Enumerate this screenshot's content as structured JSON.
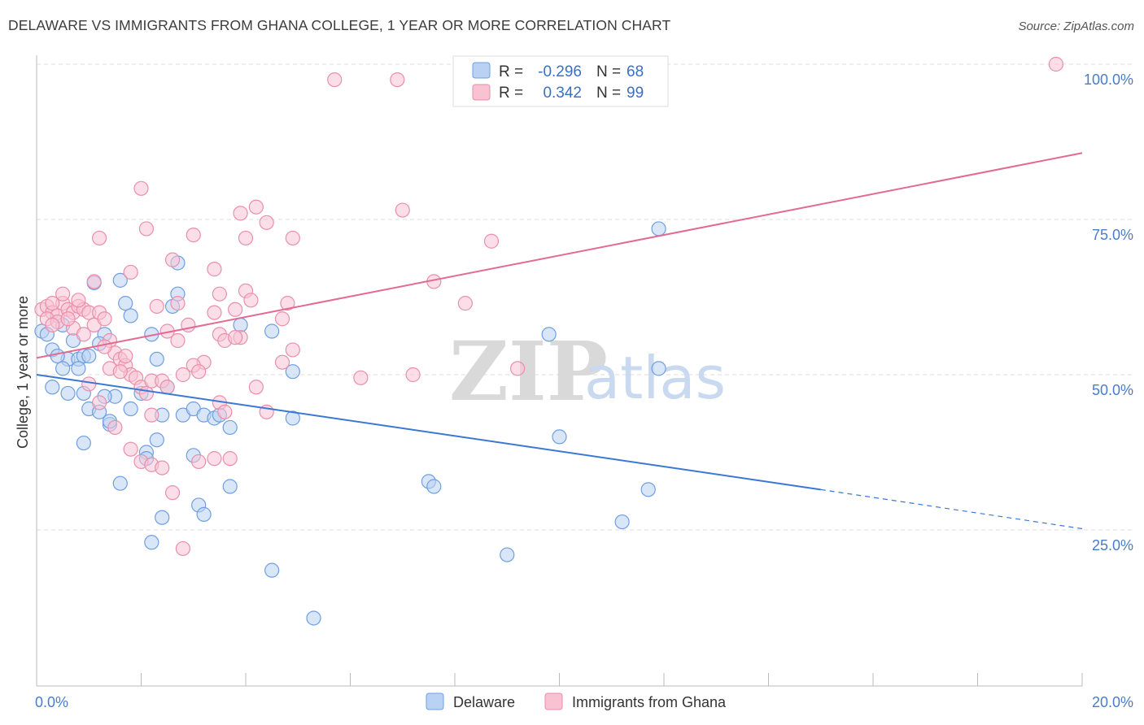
{
  "title": "DELAWARE VS IMMIGRANTS FROM GHANA COLLEGE, 1 YEAR OR MORE CORRELATION CHART",
  "source": "Source: ZipAtlas.com",
  "watermark": {
    "zip": "ZIP",
    "atlas": "atlas"
  },
  "colors": {
    "delaware_fill": "#b9d1f3",
    "delaware_stroke": "#6f9fe0",
    "delaware_line": "#3b78d4",
    "ghana_fill": "#f8c2d3",
    "ghana_stroke": "#ea8fab",
    "ghana_line": "#e36a93",
    "grid": "#dddddd",
    "axis_text": "#4a7cc9"
  },
  "legend": {
    "rows": [
      {
        "r_label": "R =",
        "r_value": "-0.296",
        "n_label": "N =",
        "n_value": "68"
      },
      {
        "r_label": "R =",
        "r_value": "0.342",
        "n_label": "N =",
        "n_value": "99"
      }
    ]
  },
  "bottom_legend": [
    "Delaware",
    "Immigrants from Ghana"
  ],
  "chart_data": {
    "type": "scatter",
    "title": "DELAWARE VS IMMIGRANTS FROM GHANA COLLEGE, 1 YEAR OR MORE CORRELATION CHART",
    "xlabel": "",
    "ylabel": "College, 1 year or more",
    "xlim": [
      0,
      20
    ],
    "ylim": [
      0,
      105
    ],
    "x_tick_labels": [
      "0.0%",
      "20.0%"
    ],
    "y_ticks": [
      25,
      50,
      75,
      100
    ],
    "y_tick_labels": [
      "25.0%",
      "50.0%",
      "75.0%",
      "100.0%"
    ],
    "grid": true,
    "legend_position": "top-center",
    "series": [
      {
        "name": "Delaware",
        "r": -0.296,
        "n": 68,
        "trend": {
          "x0": 0,
          "y0": 50.0,
          "x1": 15.0,
          "y1": 31.5,
          "dashed_to_x": 20.0,
          "dashed_to_y": 25.2
        },
        "points": [
          [
            0.1,
            57.0
          ],
          [
            0.2,
            56.5
          ],
          [
            0.3,
            54.0
          ],
          [
            0.5,
            58.0
          ],
          [
            0.6,
            52.5
          ],
          [
            0.4,
            53.0
          ],
          [
            0.5,
            51.0
          ],
          [
            0.7,
            55.5
          ],
          [
            0.8,
            52.5
          ],
          [
            0.9,
            53.0
          ],
          [
            1.0,
            53.0
          ],
          [
            0.3,
            48.0
          ],
          [
            0.8,
            51.0
          ],
          [
            0.9,
            47.0
          ],
          [
            1.0,
            44.5
          ],
          [
            1.2,
            44.0
          ],
          [
            1.3,
            56.5
          ],
          [
            1.2,
            55.0
          ],
          [
            1.1,
            64.8
          ],
          [
            1.6,
            65.2
          ],
          [
            1.7,
            61.5
          ],
          [
            1.8,
            59.5
          ],
          [
            2.2,
            56.5
          ],
          [
            2.3,
            52.5
          ],
          [
            2.5,
            48.0
          ],
          [
            2.6,
            61.0
          ],
          [
            2.7,
            63.0
          ],
          [
            2.7,
            68.0
          ],
          [
            1.5,
            46.5
          ],
          [
            1.4,
            42.0
          ],
          [
            1.4,
            42.5
          ],
          [
            1.8,
            44.5
          ],
          [
            2.3,
            39.5
          ],
          [
            2.4,
            43.5
          ],
          [
            2.8,
            43.5
          ],
          [
            3.0,
            44.5
          ],
          [
            2.1,
            37.5
          ],
          [
            2.1,
            36.5
          ],
          [
            3.0,
            37.0
          ],
          [
            3.2,
            43.5
          ],
          [
            3.4,
            43.0
          ],
          [
            3.5,
            43.5
          ],
          [
            3.7,
            41.5
          ],
          [
            3.9,
            58.0
          ],
          [
            4.5,
            57.0
          ],
          [
            4.9,
            50.5
          ],
          [
            4.9,
            43.0
          ],
          [
            0.9,
            39.0
          ],
          [
            1.6,
            32.5
          ],
          [
            2.4,
            27.0
          ],
          [
            2.2,
            23.0
          ],
          [
            3.1,
            29.0
          ],
          [
            3.2,
            27.5
          ],
          [
            3.7,
            32.0
          ],
          [
            4.5,
            18.5
          ],
          [
            5.3,
            10.8
          ],
          [
            7.5,
            32.8
          ],
          [
            7.6,
            32.0
          ],
          [
            9.0,
            21.0
          ],
          [
            9.8,
            56.5
          ],
          [
            10.0,
            40.0
          ],
          [
            11.2,
            26.3
          ],
          [
            11.7,
            31.5
          ],
          [
            11.9,
            51.0
          ],
          [
            11.9,
            73.5
          ],
          [
            2.0,
            47.0
          ],
          [
            1.3,
            46.5
          ],
          [
            0.6,
            47.0
          ]
        ]
      },
      {
        "name": "Immigrants from Ghana",
        "r": 0.342,
        "n": 99,
        "trend": {
          "x0": 0,
          "y0": 52.7,
          "x1": 20.0,
          "y1": 85.7
        },
        "points": [
          [
            0.1,
            60.5
          ],
          [
            0.2,
            61.0
          ],
          [
            0.3,
            60.0
          ],
          [
            0.4,
            59.5
          ],
          [
            0.5,
            61.5
          ],
          [
            0.6,
            60.5
          ],
          [
            0.7,
            60.0
          ],
          [
            0.8,
            61.0
          ],
          [
            0.9,
            60.5
          ],
          [
            1.0,
            60.0
          ],
          [
            0.2,
            59.0
          ],
          [
            0.3,
            61.5
          ],
          [
            0.4,
            58.5
          ],
          [
            0.5,
            63.0
          ],
          [
            0.7,
            57.5
          ],
          [
            0.8,
            62.0
          ],
          [
            1.1,
            58.0
          ],
          [
            1.2,
            60.0
          ],
          [
            1.3,
            59.0
          ],
          [
            1.4,
            55.5
          ],
          [
            1.5,
            53.5
          ],
          [
            1.6,
            52.5
          ],
          [
            1.7,
            51.5
          ],
          [
            1.8,
            50.0
          ],
          [
            1.9,
            49.5
          ],
          [
            2.0,
            48.0
          ],
          [
            2.1,
            47.0
          ],
          [
            2.2,
            49.0
          ],
          [
            1.0,
            48.5
          ],
          [
            1.2,
            45.5
          ],
          [
            1.5,
            41.5
          ],
          [
            1.8,
            38.0
          ],
          [
            2.0,
            36.0
          ],
          [
            2.2,
            35.5
          ],
          [
            2.4,
            35.0
          ],
          [
            2.6,
            31.0
          ],
          [
            2.8,
            22.0
          ],
          [
            3.1,
            36.0
          ],
          [
            3.4,
            36.5
          ],
          [
            3.5,
            45.5
          ],
          [
            3.7,
            36.5
          ],
          [
            3.2,
            52.0
          ],
          [
            3.4,
            60.0
          ],
          [
            3.5,
            56.5
          ],
          [
            3.6,
            55.5
          ],
          [
            3.8,
            60.5
          ],
          [
            3.9,
            56.0
          ],
          [
            4.0,
            63.5
          ],
          [
            4.1,
            62.0
          ],
          [
            4.2,
            48.0
          ],
          [
            4.4,
            44.0
          ],
          [
            4.7,
            59.0
          ],
          [
            4.8,
            61.5
          ],
          [
            4.9,
            54.0
          ],
          [
            4.7,
            52.0
          ],
          [
            2.0,
            80.0
          ],
          [
            2.1,
            73.5
          ],
          [
            1.2,
            72.0
          ],
          [
            2.6,
            68.5
          ],
          [
            1.8,
            66.5
          ],
          [
            1.1,
            65.0
          ],
          [
            3.0,
            72.5
          ],
          [
            3.4,
            67.0
          ],
          [
            3.9,
            76.0
          ],
          [
            4.0,
            72.0
          ],
          [
            4.2,
            77.0
          ],
          [
            4.4,
            74.5
          ],
          [
            4.9,
            72.0
          ],
          [
            3.5,
            63.0
          ],
          [
            2.7,
            61.5
          ],
          [
            2.3,
            61.0
          ],
          [
            2.9,
            58.0
          ],
          [
            2.7,
            55.5
          ],
          [
            3.0,
            51.5
          ],
          [
            3.1,
            50.5
          ],
          [
            2.4,
            49.0
          ],
          [
            2.5,
            48.0
          ],
          [
            2.2,
            43.5
          ],
          [
            5.7,
            97.5
          ],
          [
            6.9,
            97.5
          ],
          [
            7.0,
            76.5
          ],
          [
            7.6,
            65.0
          ],
          [
            8.2,
            61.5
          ],
          [
            8.7,
            71.5
          ],
          [
            6.2,
            49.5
          ],
          [
            7.2,
            50.0
          ],
          [
            9.2,
            51.0
          ],
          [
            19.5,
            100.0
          ],
          [
            0.3,
            58.0
          ],
          [
            0.6,
            59.0
          ],
          [
            0.9,
            56.5
          ],
          [
            1.4,
            51.0
          ],
          [
            1.6,
            50.5
          ],
          [
            1.3,
            54.5
          ],
          [
            1.7,
            53.0
          ],
          [
            2.8,
            50.0
          ],
          [
            3.6,
            44.0
          ],
          [
            3.8,
            56.0
          ],
          [
            2.5,
            57.0
          ]
        ]
      }
    ]
  }
}
